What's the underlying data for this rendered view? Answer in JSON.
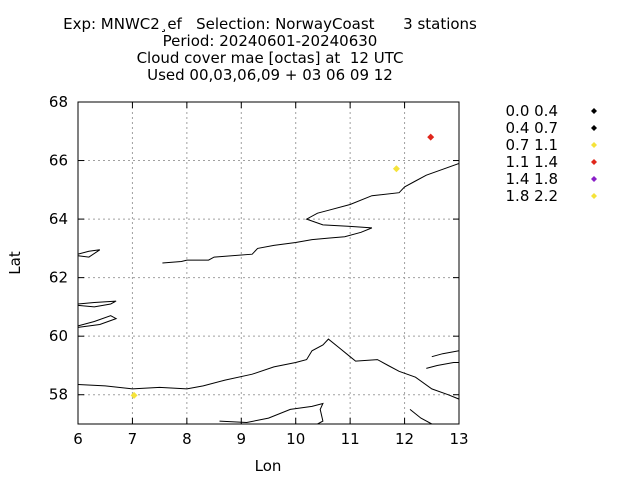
{
  "chart_data": {
    "type": "scatter",
    "title_lines": [
      "Exp: MNWC2¸ef   Selection: NorwayCoast      3 stations",
      "Period: 20240601-20240630",
      "Cloud cover mae [octas] at  12 UTC",
      "Used 00,03,06,09 + 03 06 09 12"
    ],
    "xlabel": "Lon",
    "ylabel": "Lat",
    "xlim": [
      6,
      13
    ],
    "ylim": [
      57,
      68
    ],
    "xticks": [
      6,
      7,
      8,
      9,
      10,
      11,
      12,
      13
    ],
    "yticks": [
      58,
      60,
      62,
      64,
      66,
      68
    ],
    "grid": true,
    "legend_placement": "right",
    "legend": [
      {
        "label": "0.0 0.4",
        "color": "#000000"
      },
      {
        "label": "0.4 0.7",
        "color": "#000000"
      },
      {
        "label": "0.7 1.1",
        "color": "#f5e33a"
      },
      {
        "label": "1.1 1.4",
        "color": "#e0261b"
      },
      {
        "label": "1.4 1.8",
        "color": "#8a1fc8"
      },
      {
        "label": "1.8 2.2",
        "color": "#f5e33a"
      }
    ],
    "points": [
      {
        "lon": 12.48,
        "lat": 66.8,
        "color": "#e0261b"
      },
      {
        "lon": 11.85,
        "lat": 65.72,
        "color": "#f5e33a"
      },
      {
        "lon": 7.03,
        "lat": 57.98,
        "color": "#f5e33a"
      }
    ],
    "coastlines": [
      [
        [
          7.55,
          62.5
        ],
        [
          7.9,
          62.55
        ],
        [
          8.0,
          62.6
        ],
        [
          8.4,
          62.6
        ],
        [
          8.5,
          62.7
        ],
        [
          9.2,
          62.8
        ],
        [
          9.3,
          63.0
        ],
        [
          9.6,
          63.1
        ],
        [
          10.0,
          63.2
        ],
        [
          10.3,
          63.3
        ],
        [
          10.6,
          63.35
        ],
        [
          10.9,
          63.4
        ],
        [
          11.2,
          63.55
        ],
        [
          11.4,
          63.7
        ],
        [
          11.0,
          63.75
        ],
        [
          10.5,
          63.8
        ],
        [
          10.2,
          64.0
        ],
        [
          10.4,
          64.2
        ],
        [
          10.6,
          64.3
        ],
        [
          11.0,
          64.5
        ],
        [
          11.4,
          64.8
        ],
        [
          11.9,
          64.9
        ],
        [
          12.0,
          65.1
        ],
        [
          12.2,
          65.3
        ],
        [
          12.4,
          65.5
        ],
        [
          12.7,
          65.7
        ],
        [
          13.0,
          65.9
        ]
      ],
      [
        [
          6.0,
          61.05
        ],
        [
          6.3,
          61.0
        ],
        [
          6.6,
          61.1
        ],
        [
          6.7,
          61.2
        ],
        [
          6.3,
          61.15
        ],
        [
          6.0,
          61.1
        ]
      ],
      [
        [
          6.0,
          60.3
        ],
        [
          6.4,
          60.4
        ],
        [
          6.7,
          60.6
        ],
        [
          6.6,
          60.7
        ],
        [
          6.3,
          60.5
        ],
        [
          6.0,
          60.35
        ]
      ],
      [
        [
          6.0,
          62.8
        ],
        [
          6.2,
          62.9
        ],
        [
          6.4,
          62.95
        ],
        [
          6.2,
          62.7
        ],
        [
          6.0,
          62.75
        ]
      ],
      [
        [
          6.0,
          58.35
        ],
        [
          6.5,
          58.3
        ],
        [
          7.0,
          58.2
        ],
        [
          7.5,
          58.25
        ],
        [
          8.0,
          58.2
        ],
        [
          8.3,
          58.3
        ],
        [
          8.7,
          58.5
        ],
        [
          9.2,
          58.7
        ],
        [
          9.6,
          58.95
        ],
        [
          10.0,
          59.1
        ],
        [
          10.2,
          59.2
        ],
        [
          10.3,
          59.5
        ],
        [
          10.5,
          59.7
        ],
        [
          10.6,
          59.9
        ],
        [
          10.8,
          59.6
        ],
        [
          11.0,
          59.3
        ],
        [
          11.1,
          59.15
        ],
        [
          11.5,
          59.2
        ],
        [
          11.7,
          59.0
        ],
        [
          11.9,
          58.8
        ],
        [
          12.2,
          58.6
        ],
        [
          12.5,
          58.2
        ],
        [
          12.8,
          58.0
        ],
        [
          13.0,
          57.85
        ]
      ],
      [
        [
          8.6,
          57.1
        ],
        [
          9.1,
          57.05
        ],
        [
          9.5,
          57.2
        ],
        [
          9.9,
          57.5
        ],
        [
          10.3,
          57.6
        ],
        [
          10.5,
          57.7
        ],
        [
          10.45,
          57.5
        ],
        [
          10.5,
          57.1
        ],
        [
          10.4,
          57.0
        ]
      ],
      [
        [
          12.1,
          57.5
        ],
        [
          12.3,
          57.2
        ],
        [
          12.5,
          57.0
        ]
      ],
      [
        [
          12.4,
          58.9
        ],
        [
          12.6,
          59.0
        ],
        [
          12.9,
          59.1
        ],
        [
          13.0,
          59.1
        ]
      ],
      [
        [
          12.5,
          59.3
        ],
        [
          12.7,
          59.4
        ],
        [
          13.0,
          59.5
        ]
      ]
    ]
  }
}
